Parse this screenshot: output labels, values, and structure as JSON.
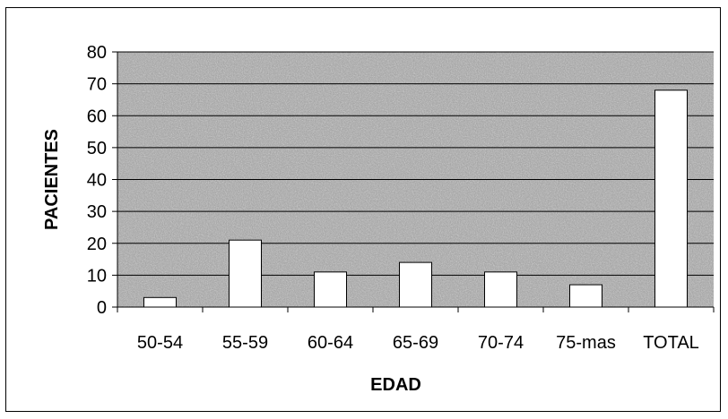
{
  "chart_data": {
    "type": "bar",
    "title": "",
    "xlabel": "EDAD",
    "ylabel": "PACIENTES",
    "categories": [
      "50-54",
      "55-59",
      "60-64",
      "65-69",
      "70-74",
      "75-mas",
      "TOTAL"
    ],
    "values": [
      3,
      21,
      11,
      14,
      11,
      7,
      68
    ],
    "ylim": [
      0,
      80
    ],
    "yticks": [
      "0",
      "10",
      "20",
      "30",
      "40",
      "50",
      "60",
      "70",
      "80"
    ],
    "grid": true,
    "legend": "none",
    "colors": {
      "plot_background": "#9a9a9a",
      "bar_fill": "#ffffff",
      "bar_stroke": "#000000",
      "gridline": "#000000"
    }
  }
}
